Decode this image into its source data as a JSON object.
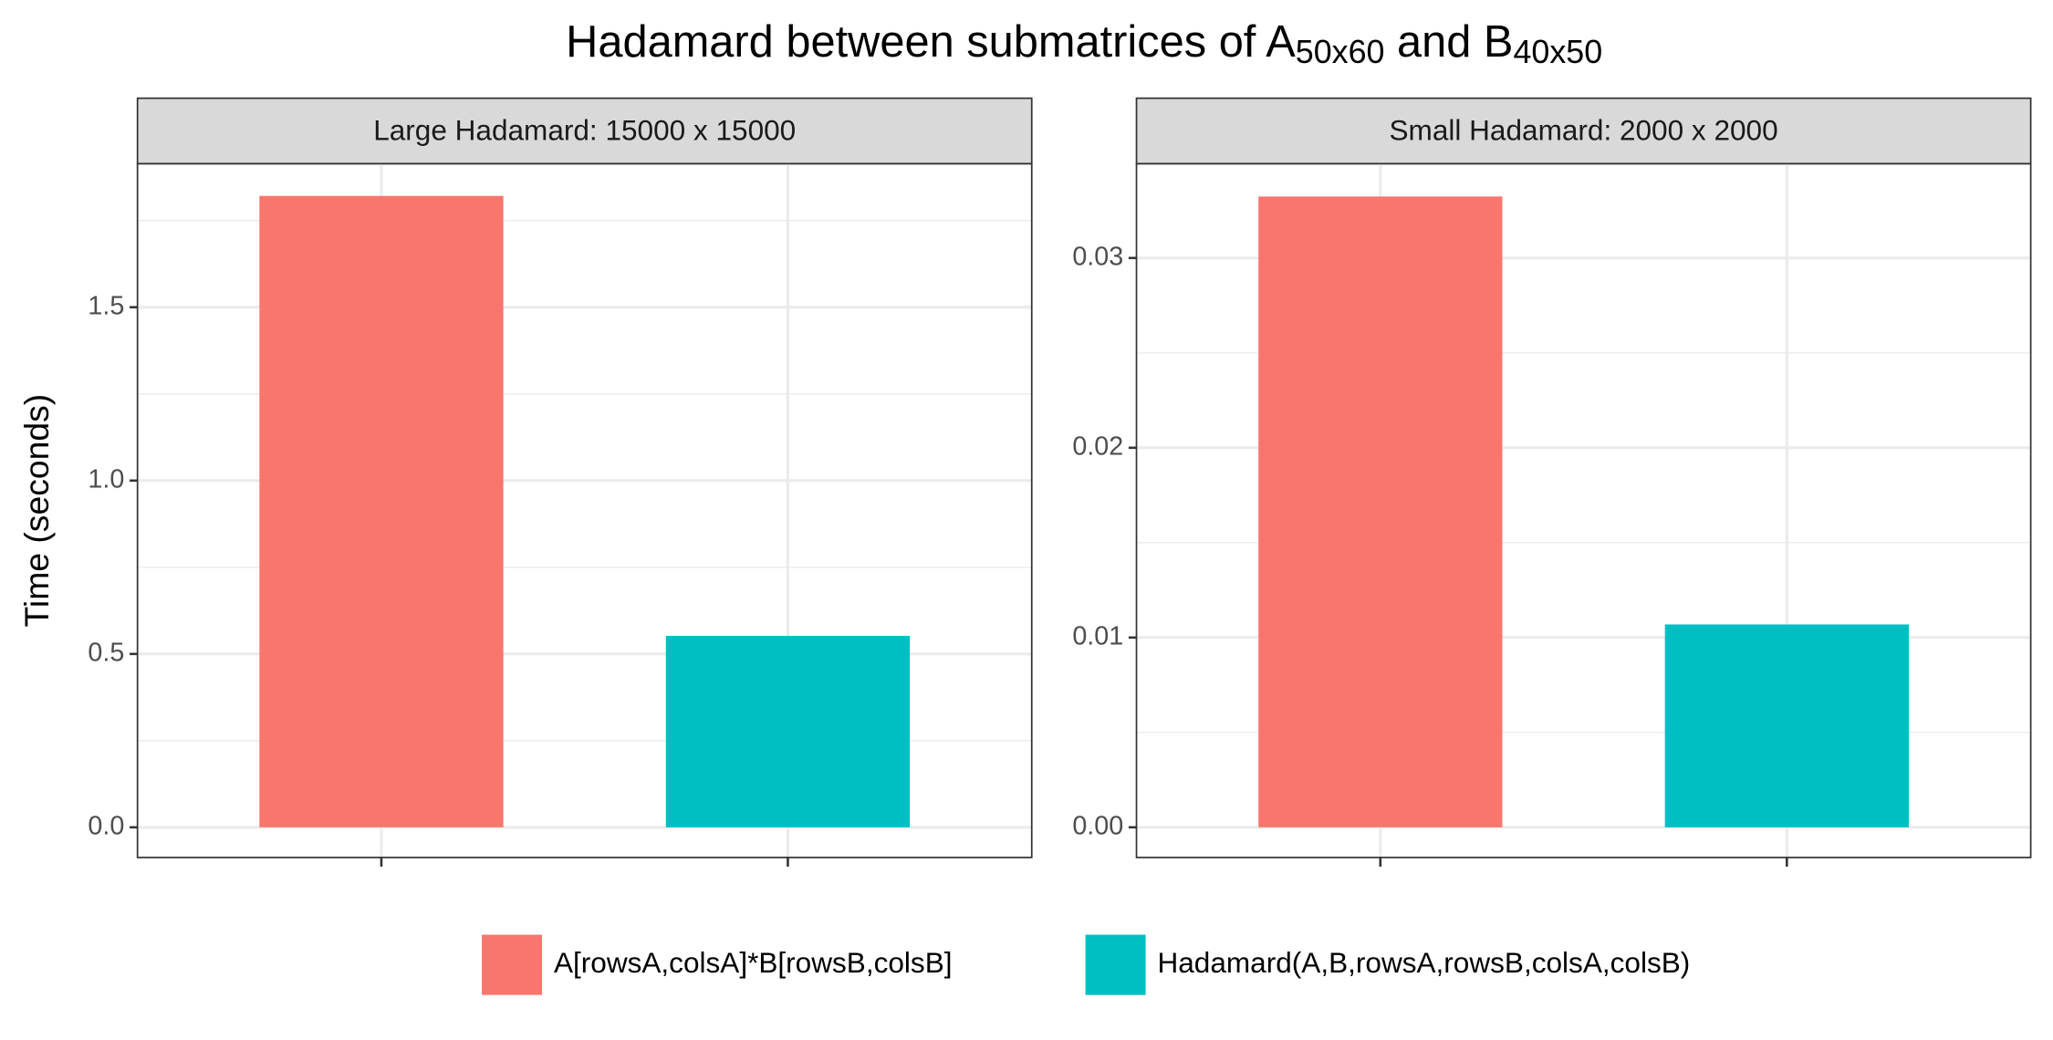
{
  "chart_data": {
    "type": "bar",
    "title_parts": [
      {
        "text": "Hadamard between submatrices of A"
      },
      {
        "text": "50x60",
        "subscript": true
      },
      {
        "text": " and B"
      },
      {
        "text": "40x50",
        "subscript": true
      }
    ],
    "ylabel": "Time (seconds)",
    "grid": true,
    "minor_grid": true,
    "legend_position": "bottom",
    "series": [
      {
        "name": "A[rowsA,colsA]*B[rowsB,colsB]",
        "color": "#f8766d",
        "values": [
          1.821,
          0.03324
        ]
      },
      {
        "name": "Hadamard(A,B,rowsA,rowsB,colsA,colsB)",
        "color": "#00bfc4",
        "values": [
          0.552,
          0.01069
        ]
      }
    ],
    "facets": [
      {
        "label": "Large Hadamard: 15000 x 15000",
        "ylim": [
          -0.087,
          1.914
        ],
        "yticks": [
          {
            "value": 0,
            "label": "0.0"
          },
          {
            "value": 0.5,
            "label": "0.5"
          },
          {
            "value": 1,
            "label": "1.0"
          },
          {
            "value": 1.5,
            "label": "1.5"
          }
        ]
      },
      {
        "label": "Small Hadamard: 2000 x 2000",
        "ylim": [
          -0.00159,
          0.03497
        ],
        "yticks": [
          {
            "value": 0,
            "label": "0.00"
          },
          {
            "value": 0.01,
            "label": "0.01"
          },
          {
            "value": 0.02,
            "label": "0.02"
          },
          {
            "value": 0.03,
            "label": "0.03"
          }
        ]
      }
    ]
  }
}
